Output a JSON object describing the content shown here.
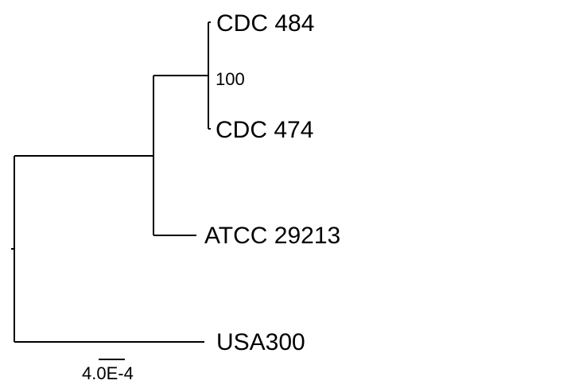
{
  "tree": {
    "leaves": [
      {
        "id": "cdc484",
        "label": "CDC 484"
      },
      {
        "id": "cdc474",
        "label": "CDC 474"
      },
      {
        "id": "atcc",
        "label": "ATCC 29213"
      },
      {
        "id": "usa300",
        "label": "USA300"
      }
    ],
    "support_values": [
      {
        "clade": "CDC 484 + CDC 474",
        "value": "100"
      }
    ]
  },
  "scale_bar": {
    "label": "4.0E-4"
  }
}
